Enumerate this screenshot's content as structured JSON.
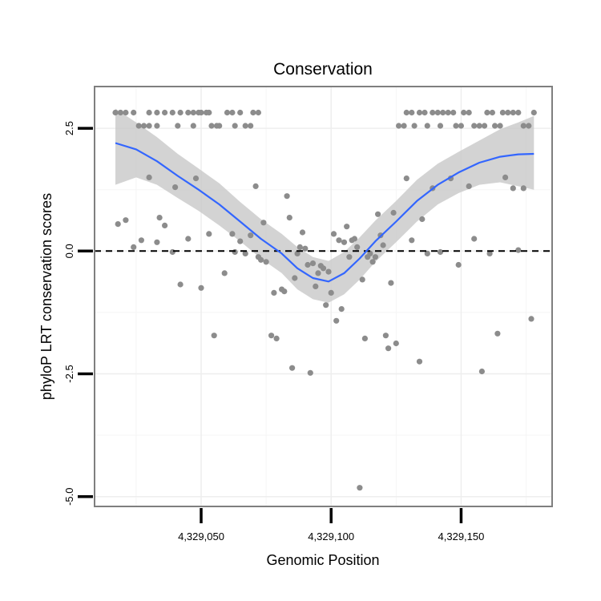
{
  "chart_data": {
    "type": "scatter",
    "title": "Conservation",
    "xlabel": "Genomic Position",
    "ylabel": "phyloP LRT conservation scores",
    "xlim": [
      4329009,
      4329185
    ],
    "ylim": [
      -5.2,
      3.35
    ],
    "x_ticks": [
      4329050,
      4329100,
      4329150
    ],
    "x_tick_labels": [
      "4,329,050",
      "4,329,100",
      "4,329,150"
    ],
    "y_ticks": [
      -5,
      -2.5,
      0,
      2.5
    ],
    "y_tick_labels": [
      "-5.0",
      "-2.5",
      "0.0",
      "2.5"
    ],
    "reference_line": {
      "y": 0,
      "style": "dashed"
    },
    "grid": true,
    "colors": {
      "points": "#8c8c8c",
      "smooth_line": "#3366ff",
      "ribbon": "#c8c8c8",
      "frame": "#7f7f7f",
      "reference_line": "#000000"
    },
    "points": [
      {
        "x": 4329017,
        "y": 2.82
      },
      {
        "x": 4329019,
        "y": 2.82
      },
      {
        "x": 4329021,
        "y": 2.82
      },
      {
        "x": 4329024,
        "y": 2.82
      },
      {
        "x": 4329026,
        "y": 2.55
      },
      {
        "x": 4329028,
        "y": 2.55
      },
      {
        "x": 4329030,
        "y": 2.55
      },
      {
        "x": 4329030,
        "y": 2.82
      },
      {
        "x": 4329033,
        "y": 2.82
      },
      {
        "x": 4329033,
        "y": 2.55
      },
      {
        "x": 4329036,
        "y": 2.82
      },
      {
        "x": 4329039,
        "y": 2.82
      },
      {
        "x": 4329041,
        "y": 2.55
      },
      {
        "x": 4329042,
        "y": 2.82
      },
      {
        "x": 4329045,
        "y": 2.82
      },
      {
        "x": 4329047,
        "y": 2.82
      },
      {
        "x": 4329047,
        "y": 2.55
      },
      {
        "x": 4329049,
        "y": 2.82
      },
      {
        "x": 4329050,
        "y": 2.82
      },
      {
        "x": 4329052,
        "y": 2.82
      },
      {
        "x": 4329053,
        "y": 2.82
      },
      {
        "x": 4329054,
        "y": 2.55
      },
      {
        "x": 4329056,
        "y": 2.55
      },
      {
        "x": 4329057,
        "y": 2.55
      },
      {
        "x": 4329060,
        "y": 2.82
      },
      {
        "x": 4329062,
        "y": 2.82
      },
      {
        "x": 4329063,
        "y": 2.55
      },
      {
        "x": 4329065,
        "y": 2.82
      },
      {
        "x": 4329067,
        "y": 2.55
      },
      {
        "x": 4329069,
        "y": 2.55
      },
      {
        "x": 4329070,
        "y": 2.82
      },
      {
        "x": 4329072,
        "y": 2.82
      },
      {
        "x": 4329018,
        "y": 0.55
      },
      {
        "x": 4329021,
        "y": 0.63
      },
      {
        "x": 4329024,
        "y": 0.08
      },
      {
        "x": 4329027,
        "y": 0.22
      },
      {
        "x": 4329030,
        "y": 1.5
      },
      {
        "x": 4329033,
        "y": 0.18
      },
      {
        "x": 4329034,
        "y": 0.68
      },
      {
        "x": 4329036,
        "y": 0.52
      },
      {
        "x": 4329039,
        "y": -0.02
      },
      {
        "x": 4329040,
        "y": 1.3
      },
      {
        "x": 4329042,
        "y": -0.68
      },
      {
        "x": 4329045,
        "y": 0.25
      },
      {
        "x": 4329048,
        "y": 1.48
      },
      {
        "x": 4329050,
        "y": -0.75
      },
      {
        "x": 4329053,
        "y": 0.35
      },
      {
        "x": 4329055,
        "y": -1.72
      },
      {
        "x": 4329059,
        "y": -0.45
      },
      {
        "x": 4329062,
        "y": 0.35
      },
      {
        "x": 4329063,
        "y": -0.02
      },
      {
        "x": 4329065,
        "y": 0.2
      },
      {
        "x": 4329067,
        "y": -0.05
      },
      {
        "x": 4329069,
        "y": 0.32
      },
      {
        "x": 4329071,
        "y": 1.32
      },
      {
        "x": 4329072,
        "y": -0.12
      },
      {
        "x": 4329073,
        "y": -0.18
      },
      {
        "x": 4329074,
        "y": 0.58
      },
      {
        "x": 4329075,
        "y": -0.22
      },
      {
        "x": 4329077,
        "y": -1.72
      },
      {
        "x": 4329078,
        "y": -0.85
      },
      {
        "x": 4329079,
        "y": -1.78
      },
      {
        "x": 4329081,
        "y": -0.78
      },
      {
        "x": 4329082,
        "y": -0.82
      },
      {
        "x": 4329083,
        "y": 1.12
      },
      {
        "x": 4329084,
        "y": 0.68
      },
      {
        "x": 4329085,
        "y": -2.38
      },
      {
        "x": 4329086,
        "y": -0.55
      },
      {
        "x": 4329087,
        "y": -0.05
      },
      {
        "x": 4329088,
        "y": 0.08
      },
      {
        "x": 4329089,
        "y": 0.38
      },
      {
        "x": 4329090,
        "y": 0.05
      },
      {
        "x": 4329091,
        "y": -0.28
      },
      {
        "x": 4329092,
        "y": -2.48
      },
      {
        "x": 4329093,
        "y": -0.25
      },
      {
        "x": 4329094,
        "y": -0.72
      },
      {
        "x": 4329095,
        "y": -0.45
      },
      {
        "x": 4329096,
        "y": -0.3
      },
      {
        "x": 4329097,
        "y": -0.35
      },
      {
        "x": 4329098,
        "y": -1.1
      },
      {
        "x": 4329099,
        "y": -0.42
      },
      {
        "x": 4329100,
        "y": -0.85
      },
      {
        "x": 4329101,
        "y": 0.35
      },
      {
        "x": 4329102,
        "y": -1.42
      },
      {
        "x": 4329103,
        "y": 0.22
      },
      {
        "x": 4329104,
        "y": -1.18
      },
      {
        "x": 4329105,
        "y": 0.18
      },
      {
        "x": 4329106,
        "y": 0.5
      },
      {
        "x": 4329107,
        "y": -0.12
      },
      {
        "x": 4329108,
        "y": 0.22
      },
      {
        "x": 4329109,
        "y": 0.25
      },
      {
        "x": 4329110,
        "y": 0.08
      },
      {
        "x": 4329111,
        "y": -4.82
      },
      {
        "x": 4329112,
        "y": -0.58
      },
      {
        "x": 4329113,
        "y": -1.78
      },
      {
        "x": 4329114,
        "y": -0.12
      },
      {
        "x": 4329115,
        "y": -0.05
      },
      {
        "x": 4329116,
        "y": -0.22
      },
      {
        "x": 4329117,
        "y": -0.12
      },
      {
        "x": 4329118,
        "y": 0.75
      },
      {
        "x": 4329119,
        "y": 0.32
      },
      {
        "x": 4329120,
        "y": 0.12
      },
      {
        "x": 4329121,
        "y": -1.72
      },
      {
        "x": 4329122,
        "y": -1.98
      },
      {
        "x": 4329123,
        "y": -0.65
      },
      {
        "x": 4329124,
        "y": 0.78
      },
      {
        "x": 4329125,
        "y": -1.88
      },
      {
        "x": 4329129,
        "y": 1.48
      },
      {
        "x": 4329131,
        "y": 0.22
      },
      {
        "x": 4329134,
        "y": -2.25
      },
      {
        "x": 4329135,
        "y": 0.65
      },
      {
        "x": 4329137,
        "y": -0.05
      },
      {
        "x": 4329139,
        "y": 1.28
      },
      {
        "x": 4329142,
        "y": -0.02
      },
      {
        "x": 4329146,
        "y": 1.48
      },
      {
        "x": 4329149,
        "y": -0.28
      },
      {
        "x": 4329153,
        "y": 1.32
      },
      {
        "x": 4329155,
        "y": 0.25
      },
      {
        "x": 4329158,
        "y": -2.45
      },
      {
        "x": 4329161,
        "y": -0.05
      },
      {
        "x": 4329164,
        "y": -1.68
      },
      {
        "x": 4329167,
        "y": 1.5
      },
      {
        "x": 4329170,
        "y": 1.28
      },
      {
        "x": 4329172,
        "y": 0.02
      },
      {
        "x": 4329174,
        "y": 1.28
      },
      {
        "x": 4329177,
        "y": -1.38
      },
      {
        "x": 4329126,
        "y": 2.55
      },
      {
        "x": 4329128,
        "y": 2.55
      },
      {
        "x": 4329129,
        "y": 2.82
      },
      {
        "x": 4329131,
        "y": 2.82
      },
      {
        "x": 4329132,
        "y": 2.55
      },
      {
        "x": 4329134,
        "y": 2.82
      },
      {
        "x": 4329136,
        "y": 2.82
      },
      {
        "x": 4329137,
        "y": 2.55
      },
      {
        "x": 4329139,
        "y": 2.82
      },
      {
        "x": 4329141,
        "y": 2.82
      },
      {
        "x": 4329142,
        "y": 2.55
      },
      {
        "x": 4329143,
        "y": 2.82
      },
      {
        "x": 4329145,
        "y": 2.82
      },
      {
        "x": 4329147,
        "y": 2.82
      },
      {
        "x": 4329148,
        "y": 2.55
      },
      {
        "x": 4329150,
        "y": 2.55
      },
      {
        "x": 4329151,
        "y": 2.82
      },
      {
        "x": 4329153,
        "y": 2.82
      },
      {
        "x": 4329155,
        "y": 2.55
      },
      {
        "x": 4329157,
        "y": 2.55
      },
      {
        "x": 4329159,
        "y": 2.55
      },
      {
        "x": 4329160,
        "y": 2.82
      },
      {
        "x": 4329162,
        "y": 2.82
      },
      {
        "x": 4329163,
        "y": 2.55
      },
      {
        "x": 4329165,
        "y": 2.55
      },
      {
        "x": 4329166,
        "y": 2.82
      },
      {
        "x": 4329168,
        "y": 2.82
      },
      {
        "x": 4329170,
        "y": 2.82
      },
      {
        "x": 4329172,
        "y": 2.82
      },
      {
        "x": 4329174,
        "y": 2.55
      },
      {
        "x": 4329176,
        "y": 2.55
      },
      {
        "x": 4329178,
        "y": 2.82
      }
    ],
    "smooth": [
      {
        "x": 4329017,
        "y": 2.2,
        "lo": 1.35,
        "hi": 2.9
      },
      {
        "x": 4329025,
        "y": 2.07,
        "lo": 1.5,
        "hi": 2.62
      },
      {
        "x": 4329033,
        "y": 1.83,
        "lo": 1.35,
        "hi": 2.32
      },
      {
        "x": 4329041,
        "y": 1.53,
        "lo": 1.08,
        "hi": 1.98
      },
      {
        "x": 4329049,
        "y": 1.25,
        "lo": 0.82,
        "hi": 1.68
      },
      {
        "x": 4329057,
        "y": 0.95,
        "lo": 0.52,
        "hi": 1.38
      },
      {
        "x": 4329065,
        "y": 0.6,
        "lo": 0.2,
        "hi": 1.0
      },
      {
        "x": 4329073,
        "y": 0.25,
        "lo": -0.15,
        "hi": 0.65
      },
      {
        "x": 4329081,
        "y": -0.05,
        "lo": -0.45,
        "hi": 0.35
      },
      {
        "x": 4329087,
        "y": -0.35,
        "lo": -0.78,
        "hi": 0.08
      },
      {
        "x": 4329093,
        "y": -0.55,
        "lo": -0.98,
        "hi": -0.12
      },
      {
        "x": 4329099,
        "y": -0.62,
        "lo": -1.05,
        "hi": -0.2
      },
      {
        "x": 4329105,
        "y": -0.45,
        "lo": -0.88,
        "hi": -0.02
      },
      {
        "x": 4329111,
        "y": -0.15,
        "lo": -0.58,
        "hi": 0.28
      },
      {
        "x": 4329117,
        "y": 0.2,
        "lo": -0.22,
        "hi": 0.62
      },
      {
        "x": 4329125,
        "y": 0.6,
        "lo": 0.18,
        "hi": 1.02
      },
      {
        "x": 4329133,
        "y": 1.02,
        "lo": 0.6,
        "hi": 1.45
      },
      {
        "x": 4329141,
        "y": 1.35,
        "lo": 0.95,
        "hi": 1.78
      },
      {
        "x": 4329149,
        "y": 1.6,
        "lo": 1.18,
        "hi": 2.02
      },
      {
        "x": 4329157,
        "y": 1.8,
        "lo": 1.35,
        "hi": 2.25
      },
      {
        "x": 4329165,
        "y": 1.92,
        "lo": 1.4,
        "hi": 2.48
      },
      {
        "x": 4329172,
        "y": 1.97,
        "lo": 1.32,
        "hi": 2.62
      },
      {
        "x": 4329178,
        "y": 1.98,
        "lo": 1.25,
        "hi": 2.75
      }
    ]
  }
}
